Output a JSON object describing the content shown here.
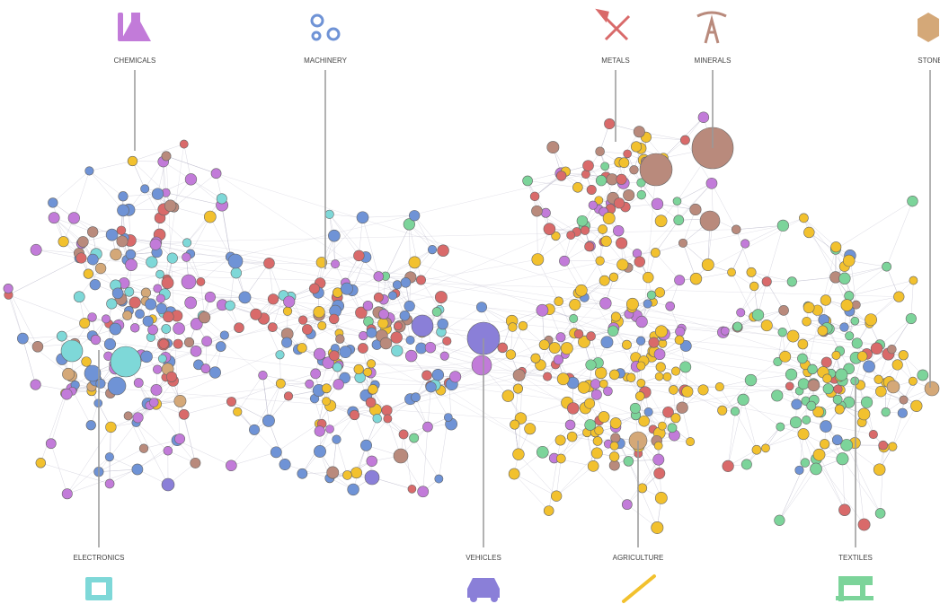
{
  "categories": {
    "top": [
      {
        "label": "CHEMICALS",
        "color": "#c27bd9"
      },
      {
        "label": "MACHINERY",
        "color": "#6f93d6"
      },
      {
        "label": "METALS",
        "color": "#d96a6a"
      },
      {
        "label": "MINERALS",
        "color": "#b98a7c"
      },
      {
        "label": "STONE",
        "color": "#d4a878"
      }
    ],
    "bottom": [
      {
        "label": "ELECTRONICS",
        "color": "#7ed8d8"
      },
      {
        "label": "VEHICLES",
        "color": "#8a7fd8"
      },
      {
        "label": "AGRICULTURE",
        "color": "#f2c12e"
      },
      {
        "label": "TEXTILES",
        "color": "#7cd49a"
      }
    ]
  }
}
